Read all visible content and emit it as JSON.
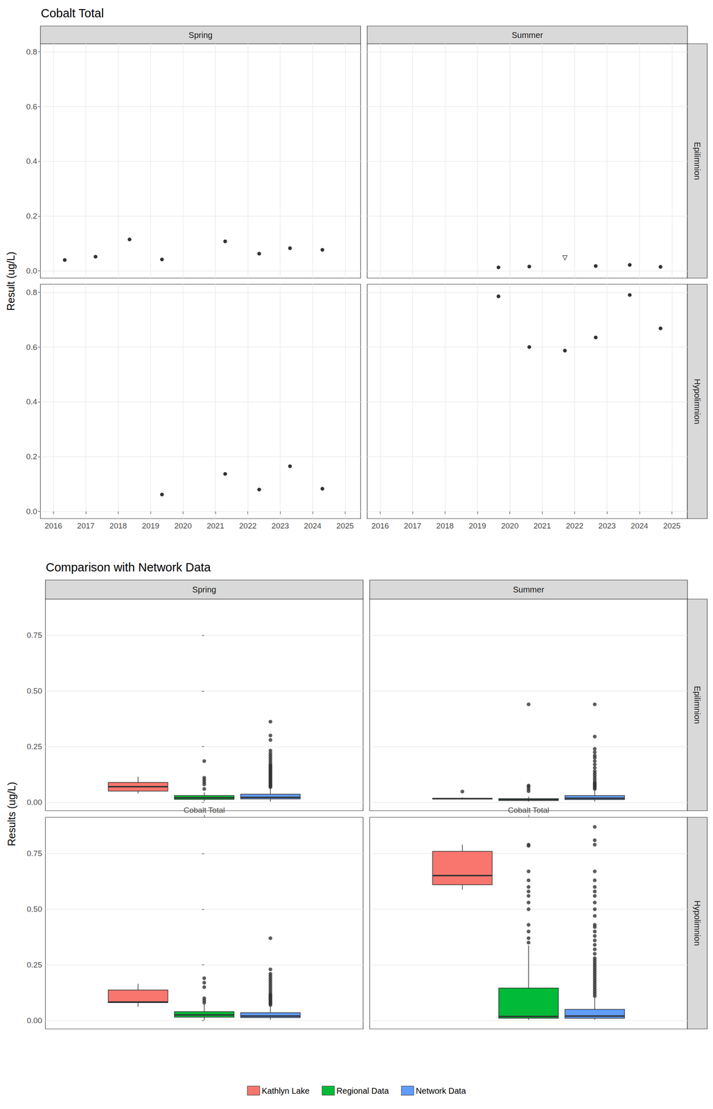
{
  "chart_data": [
    {
      "type": "scatter",
      "title": "Cobalt Total",
      "y_label": "Result (ug/L)",
      "columns": [
        "Spring",
        "Summer"
      ],
      "rows": [
        "Epilimnion",
        "Hypolimnion"
      ],
      "xlim": [
        2015.6,
        2025.48
      ],
      "xticks": [
        2016,
        2017,
        2018,
        2019,
        2020,
        2021,
        2022,
        2023,
        2024,
        2025
      ],
      "ylim": [
        -0.026,
        0.829
      ],
      "yticks": [
        {
          "value": 0,
          "label": "0.0"
        },
        0.2,
        0.4,
        0.6,
        0.8
      ],
      "grid": true,
      "panels": [
        {
          "column": "Spring",
          "row": "Epilimnion",
          "series": [
            {
              "marker": "circle",
              "color": "#000000",
              "x": [
                2016.35,
                2017.3,
                2018.35,
                2019.35,
                2021.3,
                2022.35,
                2023.3,
                2024.3
              ],
              "values": [
                0.04,
                0.052,
                0.115,
                0.042,
                0.108,
                0.063,
                0.083,
                0.077
              ]
            }
          ]
        },
        {
          "column": "Summer",
          "row": "Epilimnion",
          "series": [
            {
              "marker": "circle",
              "color": "#000000",
              "x": [
                2019.65,
                2020.6,
                2022.65,
                2023.7,
                2024.65
              ],
              "values": [
                0.013,
                0.016,
                0.018,
                0.022,
                0.015
              ]
            },
            {
              "marker": "triangle-down-open",
              "color": "#000000",
              "x": [
                2021.7
              ],
              "values": [
                0.048
              ]
            }
          ]
        },
        {
          "column": "Spring",
          "row": "Hypolimnion",
          "series": [
            {
              "marker": "circle",
              "color": "#000000",
              "x": [
                2019.35,
                2021.3,
                2022.35,
                2023.3,
                2024.3
              ],
              "values": [
                0.062,
                0.137,
                0.08,
                0.165,
                0.083
              ]
            }
          ]
        },
        {
          "column": "Summer",
          "row": "Hypolimnion",
          "series": [
            {
              "marker": "circle",
              "color": "#000000",
              "x": [
                2019.65,
                2020.6,
                2021.7,
                2022.65,
                2023.7,
                2024.65
              ],
              "values": [
                0.785,
                0.6,
                0.587,
                0.635,
                0.79,
                0.668
              ]
            }
          ]
        }
      ]
    },
    {
      "type": "boxplot",
      "title": "Comparison with Network Data",
      "y_label": "Results (ug/L)",
      "columns": [
        "Spring",
        "Summer"
      ],
      "rows": [
        "Epilimnion",
        "Hypolimnion"
      ],
      "categories": [
        "Cobalt Total"
      ],
      "series": [
        {
          "name": "Kathlyn Lake",
          "color": "#F8766D"
        },
        {
          "name": "Regional Data",
          "color": "#00BA38"
        },
        {
          "name": "Network Data",
          "color": "#619CFF"
        }
      ],
      "ylim": [
        -0.038,
        0.913
      ],
      "yticks": [
        {
          "value": 0,
          "label": "0.00"
        },
        0.25,
        {
          "value": 0.5,
          "label": "0.50"
        },
        0.75
      ],
      "grid": true,
      "legend": "bottom",
      "panels": [
        {
          "column": "Spring",
          "row": "Epilimnion",
          "boxes": [
            [
              0.04,
              0.05,
              0.07,
              0.089,
              0.115
            ],
            [
              0.005,
              0.013,
              0.02,
              0.03,
              0.044
            ],
            [
              0.003,
              0.015,
              0.022,
              0.036,
              0.065
            ]
          ],
          "outliers": [
            [],
            [
              0.06,
              0.08,
              0.09,
              0.1,
              0.11,
              0.185
            ],
            [
              0.068,
              0.072,
              0.076,
              0.08,
              0.085,
              0.09,
              0.095,
              0.1,
              0.105,
              0.11,
              0.115,
              0.12,
              0.125,
              0.13,
              0.135,
              0.14,
              0.145,
              0.15,
              0.155,
              0.16,
              0.165,
              0.17,
              0.18,
              0.19,
              0.2,
              0.21,
              0.22,
              0.232,
              0.28,
              0.3,
              0.362
            ]
          ]
        },
        {
          "column": "Summer",
          "row": "Epilimnion",
          "boxes": [
            [
              0.013,
              0.015,
              0.016,
              0.018,
              0.022
            ],
            [
              0.003,
              0.008,
              0.012,
              0.016,
              0.025
            ],
            [
              0.003,
              0.012,
              0.018,
              0.03,
              0.057
            ]
          ],
          "outliers": [
            [
              0.048
            ],
            [
              0.05,
              0.06,
              0.07,
              0.075,
              0.44
            ],
            [
              0.06,
              0.065,
              0.07,
              0.075,
              0.08,
              0.085,
              0.09,
              0.1,
              0.11,
              0.12,
              0.13,
              0.14,
              0.155,
              0.17,
              0.185,
              0.2,
              0.21,
              0.225,
              0.24,
              0.295,
              0.44
            ]
          ]
        },
        {
          "column": "Spring",
          "row": "Hypolimnion",
          "boxes": [
            [
              0.062,
              0.08,
              0.083,
              0.137,
              0.165
            ],
            [
              0.003,
              0.015,
              0.025,
              0.04,
              0.075
            ],
            [
              0.003,
              0.013,
              0.02,
              0.035,
              0.065
            ]
          ],
          "outliers": [
            [],
            [
              0.08,
              0.09,
              0.1,
              0.15,
              0.17,
              0.19
            ],
            [
              0.07,
              0.075,
              0.08,
              0.085,
              0.09,
              0.095,
              0.1,
              0.105,
              0.11,
              0.115,
              0.12,
              0.13,
              0.14,
              0.15,
              0.16,
              0.17,
              0.18,
              0.19,
              0.2,
              0.21,
              0.23,
              0.37
            ]
          ]
        },
        {
          "column": "Summer",
          "row": "Hypolimnion",
          "boxes": [
            [
              0.587,
              0.61,
              0.651,
              0.76,
              0.79
            ],
            [
              0.003,
              0.01,
              0.018,
              0.146,
              0.337
            ],
            [
              0.003,
              0.01,
              0.02,
              0.05,
              0.105
            ]
          ],
          "outliers": [
            [],
            [
              0.35,
              0.37,
              0.4,
              0.43,
              0.5,
              0.53,
              0.56,
              0.58,
              0.6,
              0.63,
              0.67,
              0.785,
              0.79
            ],
            [
              0.11,
              0.12,
              0.13,
              0.14,
              0.15,
              0.16,
              0.17,
              0.18,
              0.19,
              0.2,
              0.21,
              0.22,
              0.23,
              0.24,
              0.25,
              0.26,
              0.27,
              0.28,
              0.3,
              0.32,
              0.34,
              0.36,
              0.38,
              0.4,
              0.42,
              0.43,
              0.47,
              0.5,
              0.53,
              0.56,
              0.58,
              0.6,
              0.63,
              0.67,
              0.79,
              0.81,
              0.87
            ]
          ]
        }
      ]
    }
  ]
}
